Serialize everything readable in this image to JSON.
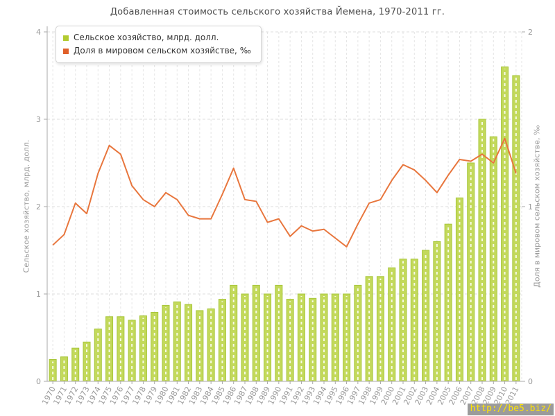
{
  "title": "Добавленная стоимость сельского хозяйства Йемена, 1970-2011 гг.",
  "legend": {
    "items": [
      {
        "label": "Сельское хозяйство, млрд. долл.",
        "swatch_color": "#b2cb30"
      },
      {
        "label": "Доля в мировом сельском хозяйстве, ‰",
        "swatch_color": "#e0602a"
      }
    ]
  },
  "watermark": {
    "text": "http://be5.biz/",
    "background": "#9b9b9b",
    "text_color": "#ffe400"
  },
  "chart_data": {
    "type": "combo",
    "title": "Добавленная стоимость сельского хозяйства Йемена, 1970-2011 гг.",
    "grid": true,
    "legend_position": "top-left",
    "categories": [
      "1970",
      "1971",
      "1972",
      "1973",
      "1974",
      "1975",
      "1976",
      "1977",
      "1978",
      "1979",
      "1980",
      "1981",
      "1982",
      "1983",
      "1984",
      "1985",
      "1986",
      "1987",
      "1988",
      "1989",
      "1990",
      "1991",
      "1992",
      "1993",
      "1994",
      "1995",
      "1996",
      "1997",
      "1998",
      "1999",
      "2000",
      "2001",
      "2002",
      "2003",
      "2004",
      "2005",
      "2006",
      "2007",
      "2008",
      "2009",
      "2010",
      "2011"
    ],
    "series": [
      {
        "name": "Сельское хозяйство, млрд. долл.",
        "type": "bar",
        "y_axis": "left",
        "color": "#c3d95b",
        "border_color": "#a7c63a",
        "values": [
          0.25,
          0.28,
          0.38,
          0.45,
          0.6,
          0.74,
          0.74,
          0.7,
          0.75,
          0.79,
          0.87,
          0.91,
          0.88,
          0.81,
          0.83,
          0.94,
          1.1,
          1.0,
          1.1,
          1.0,
          1.1,
          0.94,
          1.0,
          0.95,
          1.0,
          1.0,
          1.0,
          1.1,
          1.2,
          1.2,
          1.3,
          1.4,
          1.4,
          1.5,
          1.6,
          1.8,
          2.1,
          2.5,
          3.0,
          2.8,
          3.6,
          3.5
        ]
      },
      {
        "name": "Доля в мировом сельском хозяйстве, ‰",
        "type": "line",
        "y_axis": "right",
        "color": "#e8763d",
        "values": [
          0.78,
          0.84,
          1.02,
          0.96,
          1.19,
          1.35,
          1.3,
          1.12,
          1.04,
          1.0,
          1.08,
          1.04,
          0.95,
          0.93,
          0.93,
          1.07,
          1.22,
          1.04,
          1.03,
          0.91,
          0.93,
          0.83,
          0.89,
          0.86,
          0.87,
          0.82,
          0.77,
          0.9,
          1.02,
          1.04,
          1.15,
          1.24,
          1.21,
          1.15,
          1.08,
          1.18,
          1.27,
          1.26,
          1.3,
          1.25,
          1.39,
          1.19
        ]
      }
    ],
    "left_axis": {
      "label": "Сельское хозяйство, млрд. долл.",
      "min": 0,
      "max": 4,
      "ticks": [
        0,
        1,
        2,
        3,
        4
      ]
    },
    "right_axis": {
      "label": "Доля в мировом сельском хозяйстве, ‰",
      "min": 0,
      "max": 2,
      "ticks": [
        0,
        1,
        2
      ]
    }
  }
}
